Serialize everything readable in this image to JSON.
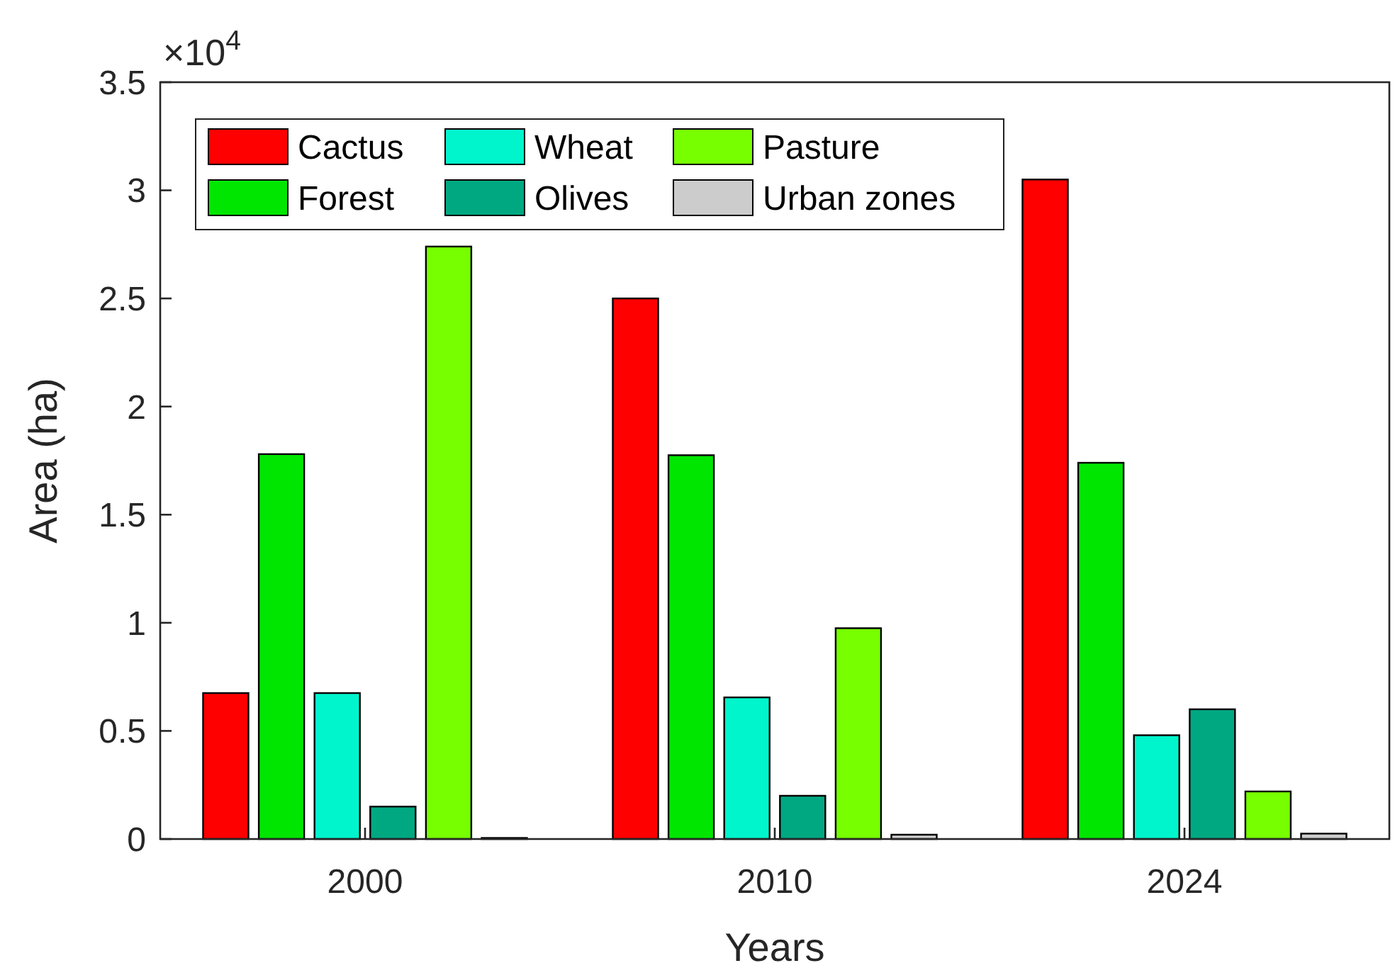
{
  "chart_data": {
    "type": "bar",
    "xlabel": "Years",
    "ylabel": "Area (ha)",
    "categories": [
      "2000",
      "2010",
      "2024"
    ],
    "series": [
      {
        "name": "Cactus",
        "color": "#ff0000",
        "values": [
          0.675,
          2.5,
          3.05
        ]
      },
      {
        "name": "Forest",
        "color": "#00e600",
        "values": [
          1.78,
          1.775,
          1.74
        ]
      },
      {
        "name": "Wheat",
        "color": "#00f5cc",
        "values": [
          0.675,
          0.655,
          0.48
        ]
      },
      {
        "name": "Olives",
        "color": "#00a882",
        "values": [
          0.15,
          0.2,
          0.6
        ]
      },
      {
        "name": "Pasture",
        "color": "#77ff00",
        "values": [
          2.74,
          0.975,
          0.22
        ]
      },
      {
        "name": "Urban zones",
        "color": "#cccccc",
        "values": [
          0.005,
          0.02,
          0.025
        ]
      }
    ],
    "ylim": [
      0,
      3.5
    ],
    "yticks": [
      0,
      0.5,
      1,
      1.5,
      2,
      2.5,
      3,
      3.5
    ],
    "annotations": [
      "×10$^{4}$"
    ],
    "legend": "top left",
    "grid": false
  }
}
